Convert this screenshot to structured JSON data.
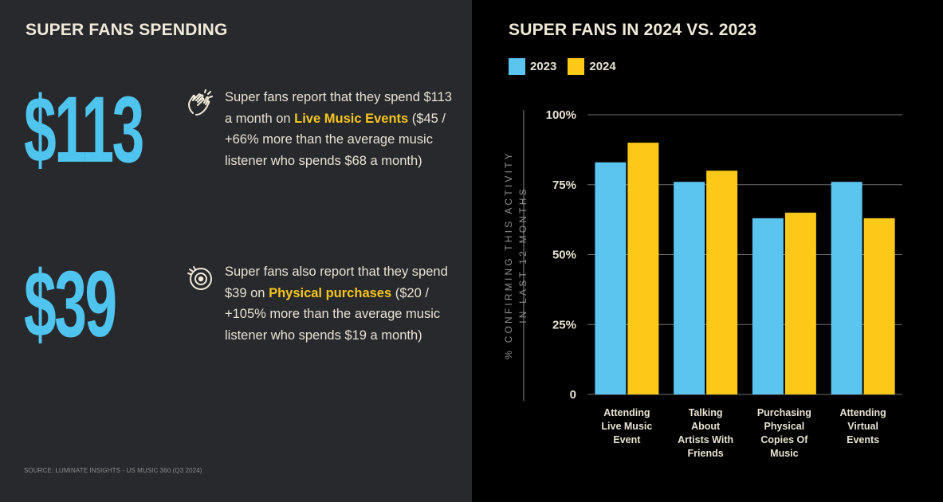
{
  "left": {
    "title": "SUPER FANS SPENDING",
    "stats": [
      {
        "amount": "$113",
        "icon": "clapping-hands-icon",
        "text_before": "Super fans report that they spend $113 a month on ",
        "highlight": "Live Music Events",
        "text_after": " ($45 / +66% more than the average music listener who spends $68 a month)"
      },
      {
        "amount": "$39",
        "icon": "vinyl-disc-icon",
        "text_before": "Super fans also report that they spend $39 on ",
        "highlight": "Physical purchases",
        "text_after": " ($20 / +105% more than the average music listener who spends $19 a month)"
      }
    ],
    "source": "SOURCE: LUMINATE INSIGHTS - US MUSIC 360 (Q3 2024)"
  },
  "colors": {
    "left_bg": "#28292d",
    "right_bg": "#000000",
    "blue": "#5bc5ef",
    "yellow": "#fcc918",
    "title": "#f1ead8"
  },
  "chart_data": {
    "type": "bar",
    "title": "SUPER FANS IN 2024 VS. 2023",
    "ylabel_line1": "% CONFIRMING THIS ACTIVITY",
    "ylabel_line2": "IN LAST 12 MONTHS",
    "ylim": [
      0,
      100
    ],
    "yticks": [
      0,
      25,
      50,
      75,
      100
    ],
    "ytick_labels": [
      "0",
      "25%",
      "50%",
      "75%",
      "100%"
    ],
    "grid": true,
    "legend_position": "top-left",
    "categories": [
      [
        "Attending",
        "Live Music",
        "Event"
      ],
      [
        "Talking",
        "About",
        "Artists With",
        "Friends"
      ],
      [
        "Purchasing",
        "Physical",
        "Copies Of",
        "Music"
      ],
      [
        "Attending",
        "Virtual",
        "Events"
      ]
    ],
    "series": [
      {
        "name": "2023",
        "color": "#5bc5ef",
        "values": [
          83,
          76,
          63,
          76
        ]
      },
      {
        "name": "2024",
        "color": "#fcc918",
        "values": [
          90,
          80,
          65,
          63
        ]
      }
    ]
  }
}
